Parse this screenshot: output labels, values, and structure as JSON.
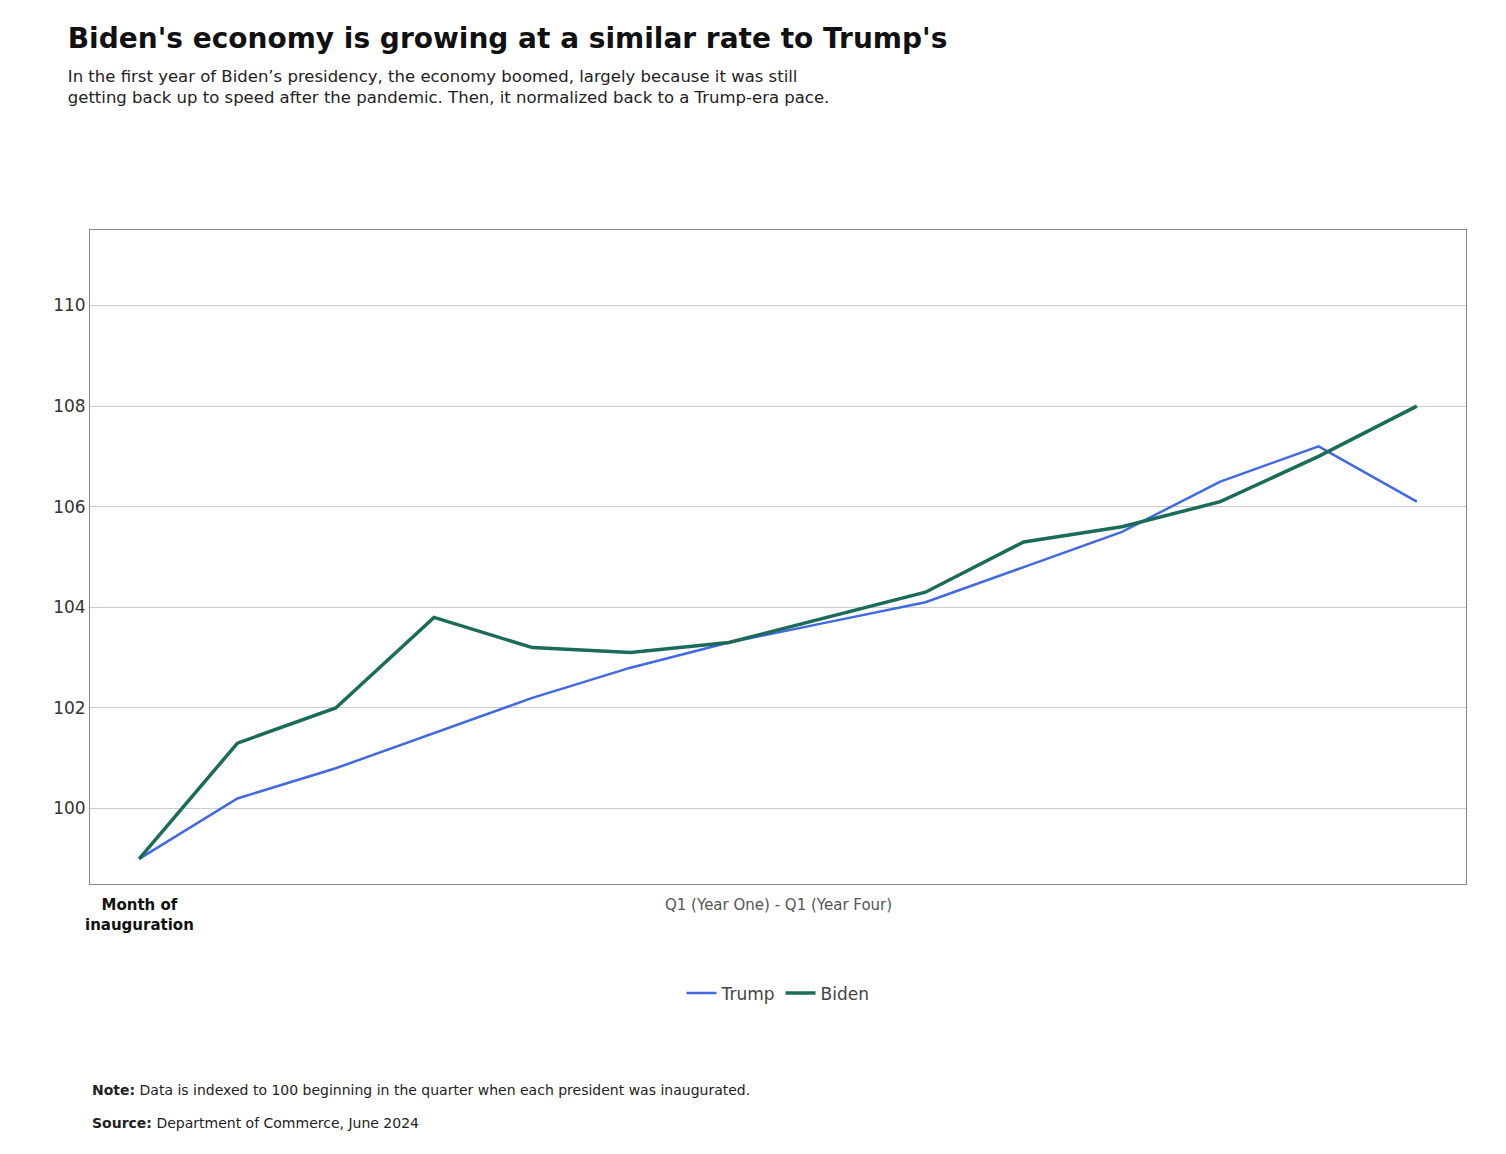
{
  "chart_data": {
    "type": "line",
    "title": "Biden's economy is growing at a similar rate to Trump's",
    "subtitle": "In the first year of Biden’s presidency, the economy boomed, largely because it was still\ngetting back up to speed after the pandemic. Then, it normalized back to a Trump-era pace.",
    "x": [
      0,
      1,
      2,
      3,
      4,
      5,
      6,
      7,
      8,
      9,
      10,
      11,
      12,
      13
    ],
    "series": [
      {
        "name": "Trump",
        "color": "#4169E1",
        "values": [
          99.0,
          100.2,
          100.8,
          101.5,
          102.2,
          102.8,
          103.3,
          103.7,
          104.1,
          104.8,
          105.5,
          106.5,
          107.2,
          106.1
        ]
      },
      {
        "name": "Biden",
        "color": "#1B6B5A",
        "values": [
          99.0,
          101.3,
          102.0,
          103.8,
          103.2,
          103.1,
          103.3,
          103.8,
          104.3,
          105.3,
          105.6,
          106.1,
          107.0,
          108.0
        ]
      }
    ],
    "xlim": [
      -0.5,
      13.5
    ],
    "ylim": [
      98.5,
      111.5
    ],
    "yticks": [
      100,
      102,
      104,
      106,
      108,
      110
    ],
    "tick_labels": "y",
    "grid": true,
    "legend": "bottom",
    "annotations": [
      "Month of\ninauguration",
      "Q1 (Year One) - Q1 (Year Four)"
    ],
    "notes": [
      "Note: Data is indexed to 100 beginning in the quarter when each president was inaugurated.",
      "Source: Department of Commerce, June 2024"
    ]
  }
}
